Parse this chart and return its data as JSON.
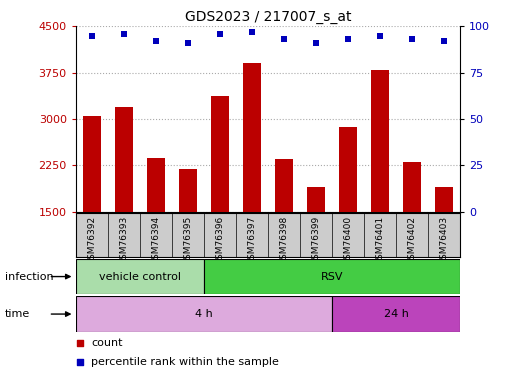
{
  "title": "GDS2023 / 217007_s_at",
  "samples": [
    "GSM76392",
    "GSM76393",
    "GSM76394",
    "GSM76395",
    "GSM76396",
    "GSM76397",
    "GSM76398",
    "GSM76399",
    "GSM76400",
    "GSM76401",
    "GSM76402",
    "GSM76403"
  ],
  "counts": [
    3050,
    3200,
    2370,
    2200,
    3380,
    3900,
    2350,
    1900,
    2870,
    3800,
    2300,
    1900
  ],
  "percentile_ranks_pct": [
    95,
    96,
    92,
    91,
    96,
    97,
    93,
    91,
    93,
    95,
    93,
    92
  ],
  "ylim_left": [
    1500,
    4500
  ],
  "yticks_left": [
    1500,
    2250,
    3000,
    3750,
    4500
  ],
  "yticks_right": [
    0,
    25,
    50,
    75,
    100
  ],
  "bar_color": "#bb0000",
  "dot_color": "#0000bb",
  "vc_color": "#aaddaa",
  "rsv_color": "#44cc44",
  "time4_color": "#ddaadd",
  "time24_color": "#bb44bb",
  "sample_bg_color": "#cccccc",
  "grid_color": "#aaaaaa",
  "background_color": "#ffffff",
  "title_fontsize": 10,
  "tick_fontsize": 8,
  "label_fontsize": 8,
  "legend_fontsize": 8
}
